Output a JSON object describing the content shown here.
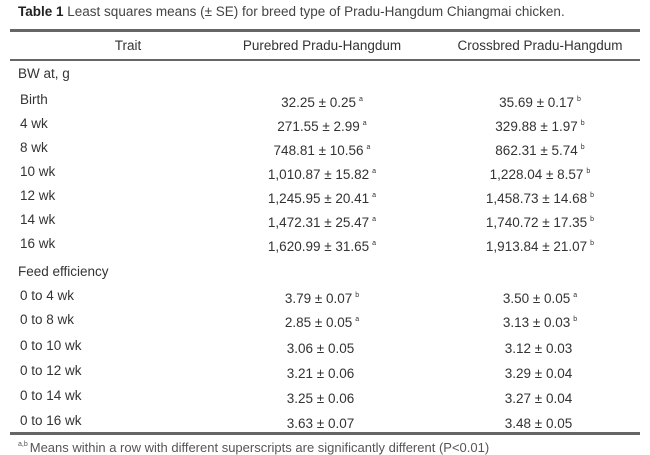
{
  "caption": {
    "label": "Table 1",
    "text": " Least squares means (± SE) for breed type of Pradu-Hangdum Chiangmai chicken."
  },
  "headers": [
    "Trait",
    "Purebred Pradu-Hangdum",
    "Crossbred Pradu-Hangdum"
  ],
  "sections": [
    {
      "title": "BW at, g",
      "rows": [
        {
          "trait": "Birth",
          "pure": "32.25 ± 0.25",
          "pure_sup": "a",
          "cross": "35.69 ± 0.17",
          "cross_sup": "b"
        },
        {
          "trait": "4 wk",
          "pure": "271.55 ± 2.99",
          "pure_sup": "a",
          "cross": "329.88 ± 1.97",
          "cross_sup": "b"
        },
        {
          "trait": "8 wk",
          "pure": "748.81 ± 10.56",
          "pure_sup": "a",
          "cross": "862.31 ± 5.74",
          "cross_sup": "b"
        },
        {
          "trait": "10 wk",
          "pure": "1,010.87 ± 15.82",
          "pure_sup": "a",
          "cross": "1,228.04 ± 8.57",
          "cross_sup": "b"
        },
        {
          "trait": "12 wk",
          "pure": "1,245.95 ± 20.41",
          "pure_sup": "a",
          "cross": "1,458.73 ± 14.68",
          "cross_sup": "b"
        },
        {
          "trait": "14 wk",
          "pure": "1,472.31 ± 25.47",
          "pure_sup": "a",
          "cross": "1,740.72 ± 17.35",
          "cross_sup": "b"
        },
        {
          "trait": "16 wk",
          "pure": "1,620.99 ± 31.65",
          "pure_sup": "a",
          "cross": "1,913.84 ± 21.07",
          "cross_sup": "b"
        }
      ]
    },
    {
      "title": "Feed efficiency",
      "rows": [
        {
          "trait": "0 to 4 wk",
          "pure": "3.79 ± 0.07",
          "pure_sup": "b",
          "cross": "3.50 ± 0.05",
          "cross_sup": "a"
        },
        {
          "trait": "0 to 8 wk",
          "pure": "2.85 ± 0.05",
          "pure_sup": "a",
          "cross": "3.13 ± 0.03",
          "cross_sup": "b"
        },
        {
          "trait": "0 to 10 wk",
          "pure": "3.06 ± 0.05",
          "pure_sup": "",
          "cross": "3.12 ± 0.03",
          "cross_sup": ""
        },
        {
          "trait": "0 to 12 wk",
          "pure": "3.21 ± 0.06",
          "pure_sup": "",
          "cross": "3.29 ± 0.04",
          "cross_sup": ""
        },
        {
          "trait": "0 to 14 wk",
          "pure": "3.25 ± 0.06",
          "pure_sup": "",
          "cross": "3.27 ± 0.04",
          "cross_sup": ""
        },
        {
          "trait": "0 to 16 wk",
          "pure": "3.63 ± 0.07",
          "pure_sup": "",
          "cross": "3.48 ± 0.05",
          "cross_sup": ""
        }
      ]
    }
  ],
  "footnote": {
    "sup": "a,b",
    "text": "Means within a row with different superscripts are significantly different (P<0.01)"
  }
}
